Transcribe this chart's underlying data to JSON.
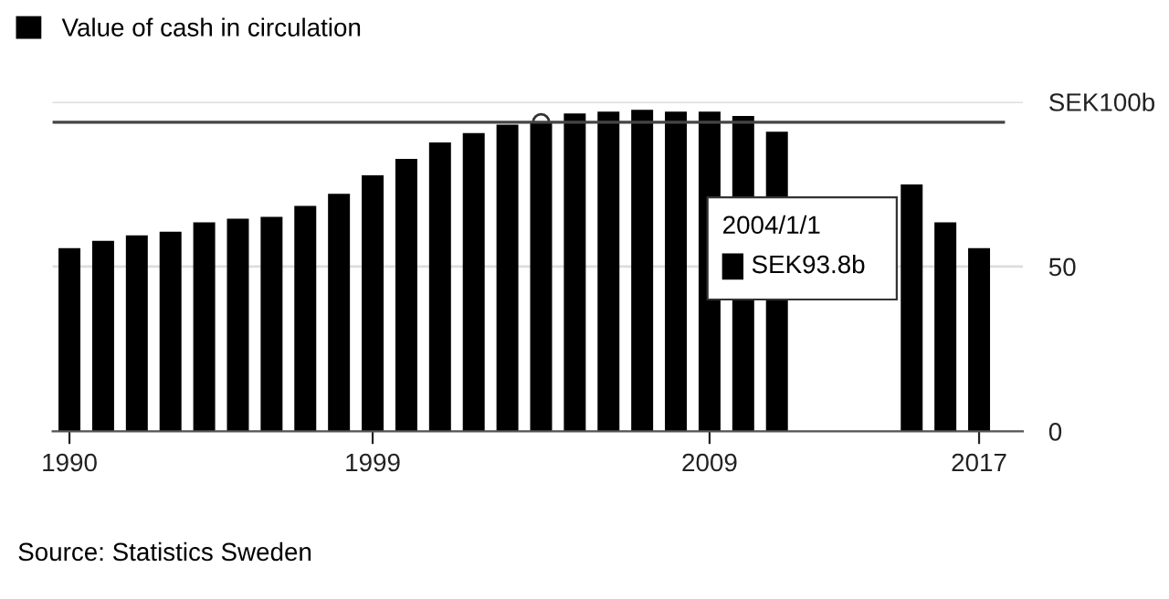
{
  "chart_data": {
    "type": "bar",
    "x": [
      1990,
      1991,
      1992,
      1993,
      1994,
      1995,
      1996,
      1997,
      1998,
      1999,
      2000,
      2001,
      2002,
      2003,
      2004,
      2005,
      2006,
      2007,
      2008,
      2009,
      2010,
      2011,
      2012,
      2013,
      2014,
      2015,
      2016,
      2017
    ],
    "series": [
      {
        "name": "Value of cash in circulation",
        "color": "#000000",
        "values": [
          55.6,
          57.8,
          59.5,
          60.6,
          63.4,
          64.5,
          65.1,
          68.4,
          72.1,
          77.7,
          82.7,
          87.7,
          90.5,
          93.1,
          93.8,
          96.5,
          97.0,
          97.6,
          97.0,
          97.0,
          95.7,
          90.9,
          null,
          null,
          null,
          74.9,
          63.4,
          55.6
        ]
      }
    ],
    "xlim": [
      1989.5,
      2018.3
    ],
    "xticks": [
      1990,
      1999,
      2009,
      2017
    ],
    "ylim": [
      0,
      100
    ],
    "yticks": [
      0,
      50,
      {
        "value": 100,
        "label": "SEK100b"
      }
    ],
    "grid": "y",
    "legend": "top left",
    "ref_lines": [
      {
        "axis": "y",
        "value": 93.8,
        "color": "#444444"
      }
    ],
    "annotations": [
      "2004/1/1",
      "SEK93.8b",
      "Source: Statistics Sweden"
    ]
  }
}
